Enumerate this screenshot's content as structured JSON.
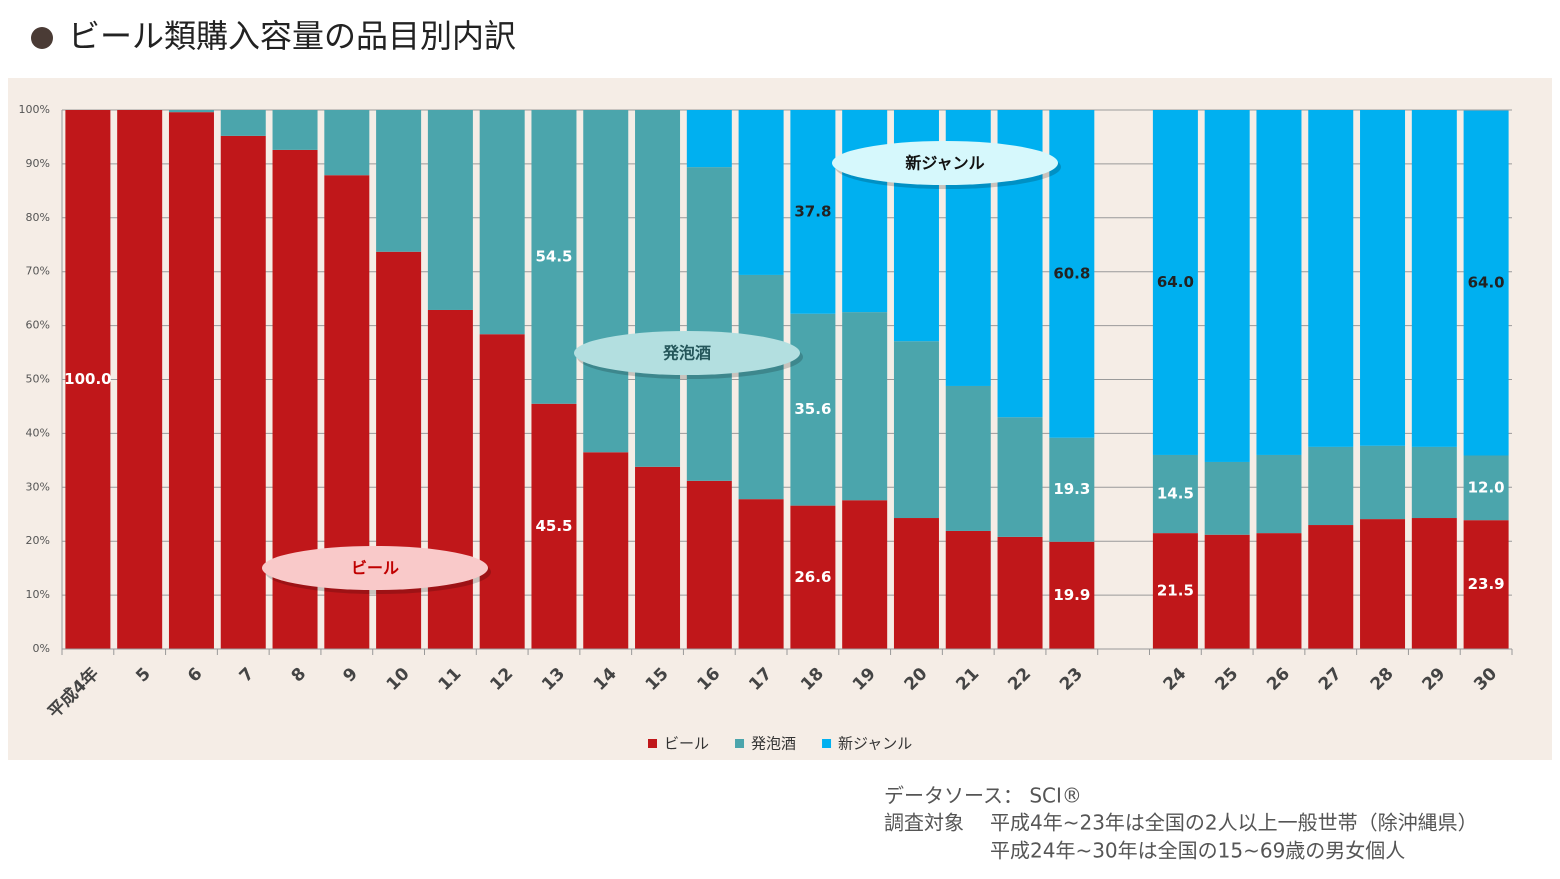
{
  "title": "ビール類購入容量の品目別内訳",
  "chart_data": {
    "type": "stacked_bar",
    "categories": [
      "平成4年",
      "5",
      "6",
      "7",
      "8",
      "9",
      "10",
      "11",
      "12",
      "13",
      "14",
      "15",
      "16",
      "17",
      "18",
      "19",
      "20",
      "21",
      "22",
      "23",
      null,
      "24",
      "25",
      "26",
      "27",
      "28",
      "29",
      "30"
    ],
    "series": [
      {
        "name": "ビール",
        "color": "#c0171a",
        "values": [
          100,
          100,
          99.6,
          95.2,
          92.6,
          87.9,
          73.7,
          62.9,
          58.4,
          45.5,
          36.5,
          33.8,
          31.2,
          27.8,
          26.6,
          27.6,
          24.3,
          21.9,
          20.8,
          19.9,
          null,
          21.5,
          21.2,
          21.5,
          23.0,
          24.1,
          24.3,
          23.9
        ],
        "value_labels": [
          "100.0",
          null,
          null,
          null,
          null,
          null,
          null,
          null,
          null,
          "45.5",
          null,
          null,
          null,
          null,
          "26.6",
          null,
          null,
          null,
          null,
          "19.9",
          null,
          "21.5",
          null,
          null,
          null,
          null,
          null,
          "23.9"
        ]
      },
      {
        "name": "発泡酒",
        "color": "#4ba5ac",
        "values": [
          0,
          0,
          0.4,
          4.8,
          7.4,
          12.1,
          26.3,
          37.1,
          41.6,
          54.5,
          63.5,
          66.2,
          58.2,
          41.6,
          35.6,
          34.9,
          32.8,
          26.9,
          22.2,
          19.3,
          null,
          14.5,
          13.5,
          14.5,
          14.5,
          13.6,
          13.2,
          12.0
        ],
        "value_labels": [
          null,
          null,
          null,
          null,
          null,
          null,
          null,
          null,
          null,
          "54.5",
          null,
          null,
          null,
          null,
          "35.6",
          null,
          null,
          null,
          null,
          "19.3",
          null,
          "14.5",
          null,
          null,
          null,
          null,
          null,
          "12.0"
        ]
      },
      {
        "name": "新ジャンル",
        "color": "#00b0f0",
        "values": [
          0,
          0,
          0,
          0,
          0,
          0,
          0,
          0,
          0,
          0,
          0,
          0,
          10.6,
          30.6,
          37.8,
          37.5,
          42.9,
          51.2,
          57.0,
          60.8,
          null,
          64.0,
          65.3,
          64.0,
          62.5,
          62.3,
          62.5,
          64.0
        ],
        "value_labels": [
          null,
          null,
          null,
          null,
          null,
          null,
          null,
          null,
          null,
          null,
          null,
          null,
          null,
          null,
          "37.8",
          null,
          null,
          null,
          null,
          "60.8",
          null,
          "64.0",
          null,
          null,
          null,
          null,
          null,
          "64.0"
        ]
      }
    ],
    "ylim": [
      0,
      100
    ],
    "yticks": [
      {
        "value": 0,
        "label": "0%"
      },
      {
        "value": 10,
        "label": "10%"
      },
      {
        "value": 20,
        "label": "20%"
      },
      {
        "value": 30,
        "label": "30%"
      },
      {
        "value": 40,
        "label": "40%"
      },
      {
        "value": 50,
        "label": "50%"
      },
      {
        "value": 60,
        "label": "60%"
      },
      {
        "value": 70,
        "label": "70%"
      },
      {
        "value": 80,
        "label": "80%"
      },
      {
        "value": 90,
        "label": "90%"
      },
      {
        "value": 100,
        "label": "100%"
      }
    ],
    "grid": true,
    "legend": "bottom"
  },
  "footnote": {
    "source": "データソース： SCI®",
    "subject_label": "調査対象",
    "subject_lines": [
      "平成4年~23年は全国の2人以上一般世帯（除沖縄県）",
      "平成24年~30年は全国の15~69歳の男女個人"
    ]
  }
}
